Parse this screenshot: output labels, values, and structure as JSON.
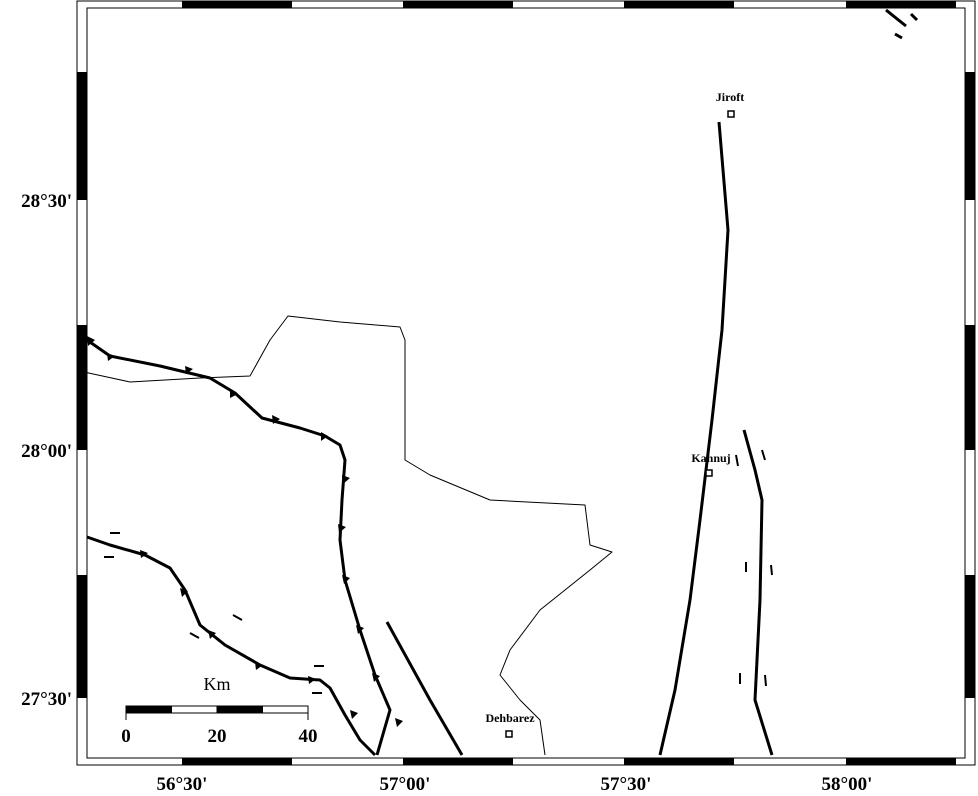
{
  "map": {
    "lat_labels": [
      "28°30'",
      "28°00'",
      "27°30'"
    ],
    "lon_labels": [
      "56°30'",
      "57°00'",
      "57°30'",
      "58°00'"
    ],
    "cities": [
      {
        "label": "Jiroft"
      },
      {
        "label": "Kahnuj"
      },
      {
        "label": "Dehbarez"
      }
    ],
    "scale_bar": {
      "unit": "Km",
      "labels": [
        "0",
        "20",
        "40"
      ]
    }
  }
}
